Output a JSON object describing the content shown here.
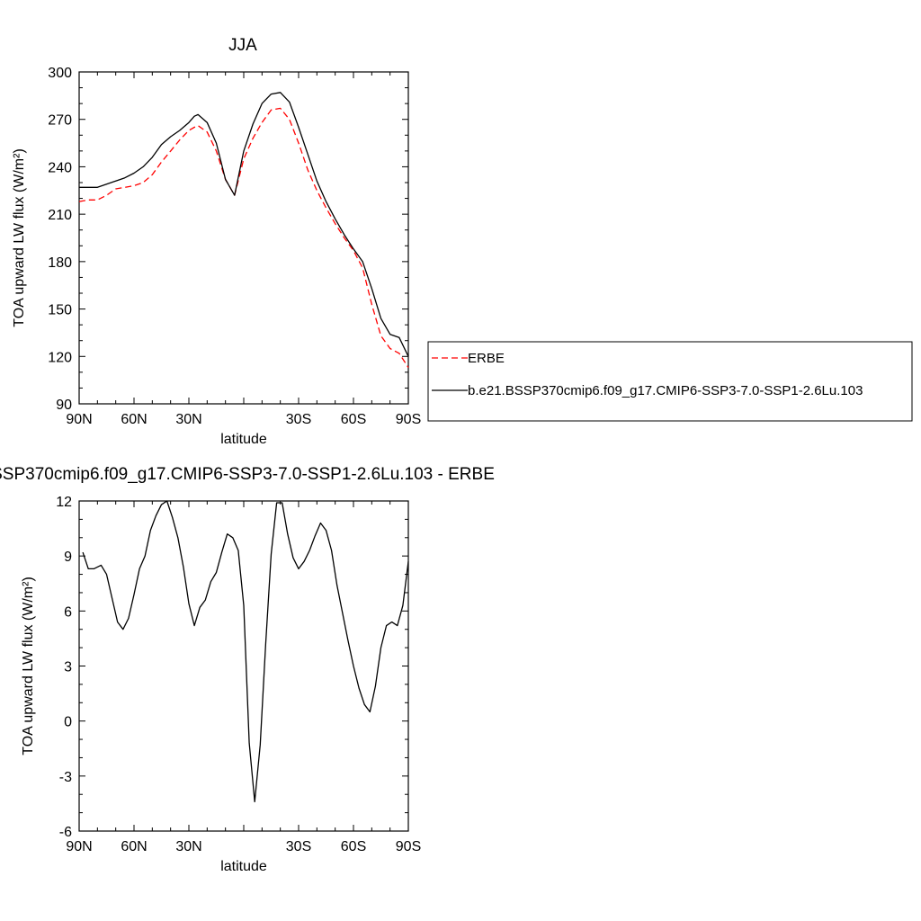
{
  "chart_data": [
    {
      "type": "line",
      "title": "JJA",
      "xlabel": "latitude",
      "ylabel": "TOA upward LW flux (W/m²)",
      "xlim": [
        -90,
        90
      ],
      "ylim": [
        90,
        300
      ],
      "x_ticks": [
        -90,
        -60,
        -30,
        0,
        30,
        60,
        90
      ],
      "x_tick_labels": [
        "90N",
        "60N",
        "30N",
        "",
        "30S",
        "60S",
        "90S"
      ],
      "y_ticks": [
        90,
        120,
        150,
        180,
        210,
        240,
        270,
        300
      ],
      "y_tick_labels": [
        "90",
        "120",
        "150",
        "180",
        "210",
        "240",
        "270",
        "300"
      ],
      "legend_position": "right",
      "series": [
        {
          "name": "ERBE",
          "color": "#ff0000",
          "dash": "dashed",
          "x": [
            -90,
            -85,
            -80,
            -75,
            -70,
            -65,
            -60,
            -55,
            -50,
            -45,
            -40,
            -35,
            -30,
            -27,
            -25,
            -20,
            -15,
            -10,
            -5,
            0,
            5,
            10,
            15,
            20,
            25,
            30,
            35,
            40,
            45,
            50,
            55,
            60,
            65,
            70,
            75,
            80,
            85,
            90
          ],
          "values": [
            218,
            219,
            219,
            222,
            226,
            227,
            228,
            230,
            235,
            243,
            250,
            257,
            263,
            265,
            266,
            262,
            250,
            232,
            222,
            245,
            258,
            268,
            276,
            277,
            270,
            255,
            238,
            225,
            214,
            204,
            195,
            187,
            176,
            153,
            133,
            125,
            122,
            113
          ]
        },
        {
          "name": "b.e21.BSSP370cmip6.f09_g17.CMIP6-SSP3-7.0-SSP1-2.6Lu.103",
          "color": "#000000",
          "dash": "solid",
          "x": [
            -90,
            -85,
            -80,
            -75,
            -70,
            -65,
            -60,
            -55,
            -50,
            -45,
            -40,
            -35,
            -30,
            -27,
            -25,
            -20,
            -15,
            -10,
            -5,
            0,
            5,
            10,
            15,
            20,
            25,
            30,
            35,
            40,
            45,
            50,
            55,
            60,
            65,
            70,
            75,
            80,
            85,
            90
          ],
          "values": [
            227,
            227,
            227,
            229,
            231,
            233,
            236,
            240,
            246,
            254,
            259,
            263,
            268,
            272,
            273,
            268,
            255,
            232,
            222,
            250,
            267,
            280,
            286,
            287,
            281,
            265,
            248,
            231,
            218,
            207,
            197,
            188,
            180,
            163,
            144,
            134,
            132,
            120
          ]
        }
      ]
    },
    {
      "type": "line",
      "title": "SSP370cmip6.f09_g17.CMIP6-SSP3-7.0-SSP1-2.6Lu.103 - ERBE",
      "xlabel": "latitude",
      "ylabel": "TOA upward LW flux (W/m²)",
      "xlim": [
        -90,
        90
      ],
      "ylim": [
        -6,
        12
      ],
      "x_ticks": [
        -90,
        -60,
        -30,
        0,
        30,
        60,
        90
      ],
      "x_tick_labels": [
        "90N",
        "60N",
        "30N",
        "",
        "30S",
        "60S",
        "90S"
      ],
      "y_ticks": [
        -6,
        -3,
        0,
        3,
        6,
        9,
        12
      ],
      "y_tick_labels": [
        "-6",
        "-3",
        "0",
        "3",
        "6",
        "9",
        "12"
      ],
      "series": [
        {
          "color": "#000000",
          "dash": "solid",
          "x": [
            -88,
            -85,
            -82,
            -78,
            -75,
            -72,
            -69,
            -66,
            -63,
            -60,
            -57,
            -54,
            -51,
            -48,
            -45,
            -42,
            -39,
            -36,
            -33,
            -30,
            -27,
            -24,
            -21,
            -18,
            -15,
            -12,
            -9,
            -6,
            -3,
            0,
            3,
            6,
            9,
            12,
            15,
            18,
            21,
            24,
            27,
            30,
            33,
            36,
            39,
            42,
            45,
            48,
            51,
            54,
            57,
            60,
            63,
            66,
            69,
            72,
            75,
            78,
            81,
            84,
            87,
            90
          ],
          "values": [
            9.2,
            8.3,
            8.3,
            8.5,
            8.0,
            6.7,
            5.4,
            5.0,
            5.6,
            6.9,
            8.3,
            9.0,
            10.4,
            11.2,
            11.8,
            12.0,
            11.1,
            10.0,
            8.4,
            6.4,
            5.2,
            6.2,
            6.6,
            7.6,
            8.1,
            9.2,
            10.2,
            10.0,
            9.3,
            6.3,
            -1.2,
            -4.4,
            -1.3,
            4.2,
            9.1,
            11.9,
            11.9,
            10.2,
            8.9,
            8.3,
            8.7,
            9.3,
            10.1,
            10.8,
            10.4,
            9.3,
            7.4,
            5.9,
            4.4,
            3.0,
            1.8,
            0.9,
            0.5,
            1.9,
            4.0,
            5.2,
            5.4,
            5.2,
            6.3,
            8.7
          ]
        }
      ]
    }
  ]
}
